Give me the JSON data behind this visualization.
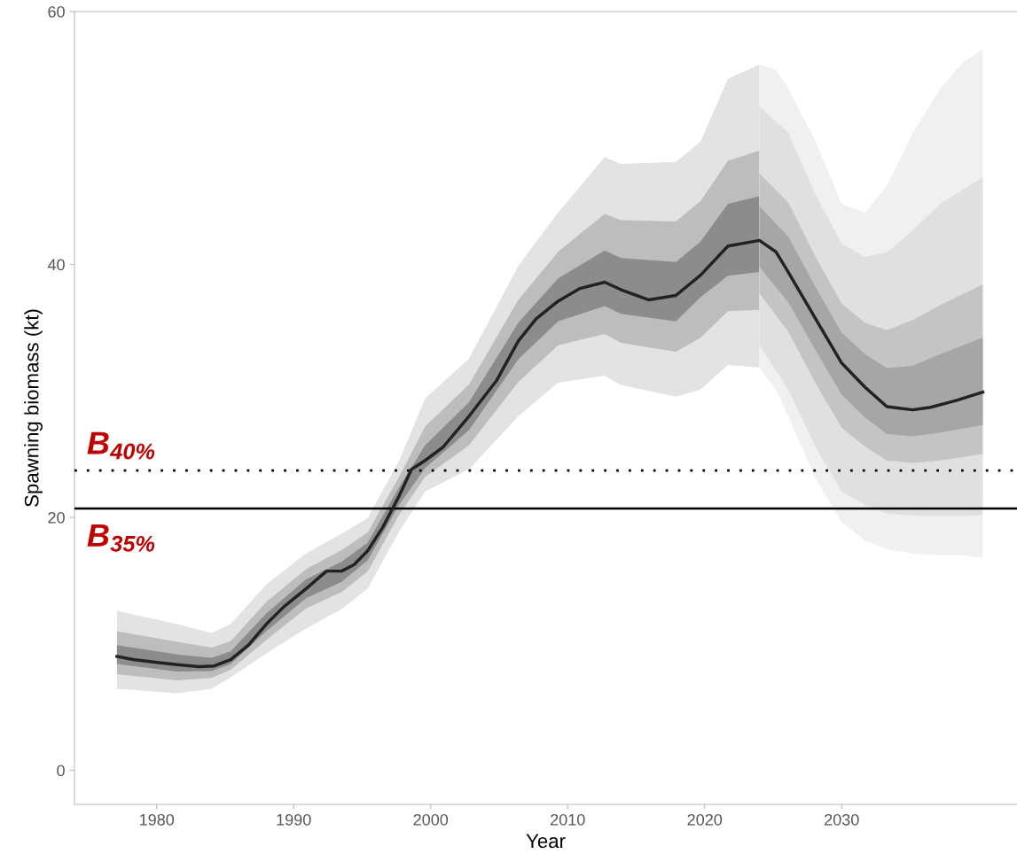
{
  "chart_data": {
    "type": "line",
    "xlabel": "Year",
    "ylabel": "Spawning biomass (kt)",
    "xlim": [
      1974.0,
      2042.8
    ],
    "ylim": [
      -2.7,
      60
    ],
    "xticks": [
      1980,
      1990,
      2000,
      2010,
      2020,
      2030
    ],
    "yticks": [
      0,
      20,
      40,
      60
    ],
    "grid": false,
    "legend": false,
    "series": [
      {
        "color": "#e3e3e3",
        "x": [
          1977.1,
          1981.5,
          1984.0,
          1985.4,
          1988.0,
          1990.9,
          1993.5,
          1995.4,
          1997.7,
          1999.6,
          2002.8,
          2006.4,
          2009.3,
          2012.7,
          2013.9,
          2017.9,
          2019.7,
          2021.7,
          2024.0
        ],
        "values": [
          null,
          null,
          null,
          null,
          null,
          null,
          null,
          null,
          null,
          null,
          null,
          null,
          null,
          null,
          null,
          null,
          null,
          null,
          null
        ],
        "upper": [
          12.6,
          11.55,
          10.85,
          11.55,
          14.7,
          17.15,
          18.7,
          19.95,
          24.5,
          29.4,
          32.55,
          39.9,
          44.1,
          48.5,
          47.95,
          48.1,
          49.7,
          54.7,
          55.8
        ],
        "lower": [
          6.45,
          6.1,
          6.45,
          7.35,
          9.25,
          11.2,
          12.75,
          14.35,
          18.9,
          22.05,
          23.8,
          28.0,
          30.65,
          31.2,
          30.45,
          29.55,
          30.1,
          32.05,
          31.85
        ]
      },
      {
        "color": "#bdbdbd",
        "x": [
          1977.1,
          1981.5,
          1984.0,
          1985.4,
          1988.0,
          1990.9,
          1993.5,
          1995.4,
          1997.7,
          1999.6,
          2002.8,
          2006.4,
          2009.3,
          2012.7,
          2013.9,
          2017.9,
          2019.7,
          2021.7,
          2024.0
        ],
        "values": [
          null,
          null,
          null,
          null,
          null,
          null,
          null,
          null,
          null,
          null,
          null,
          null,
          null,
          null,
          null,
          null,
          null,
          null,
          null
        ],
        "upper": [
          11.0,
          10.15,
          9.7,
          10.2,
          13.3,
          15.9,
          17.4,
          18.8,
          23.2,
          27.2,
          30.5,
          37.2,
          41.0,
          44.0,
          43.5,
          43.4,
          45.0,
          48.2,
          49.0
        ],
        "lower": [
          7.6,
          7.1,
          7.3,
          7.95,
          10.3,
          12.8,
          14.1,
          15.7,
          20.2,
          23.2,
          25.7,
          30.7,
          33.6,
          34.5,
          33.8,
          33.1,
          34.2,
          36.3,
          36.4
        ]
      },
      {
        "color": "#8c8c8c",
        "x": [
          1977.1,
          1981.5,
          1984.0,
          1985.4,
          1988.0,
          1990.9,
          1993.5,
          1995.4,
          1997.7,
          1999.6,
          2002.8,
          2006.4,
          2009.3,
          2012.7,
          2013.9,
          2017.9,
          2019.7,
          2021.7,
          2024.0
        ],
        "values": [
          null,
          null,
          null,
          null,
          null,
          null,
          null,
          null,
          null,
          null,
          null,
          null,
          null,
          null,
          null,
          null,
          null,
          null,
          null
        ],
        "upper": [
          9.9,
          9.15,
          8.9,
          9.4,
          12.4,
          15.1,
          16.5,
          18.0,
          22.4,
          25.7,
          29.1,
          35.4,
          38.9,
          41.1,
          40.5,
          40.2,
          41.8,
          44.8,
          45.4
        ],
        "lower": [
          8.4,
          7.8,
          7.85,
          8.4,
          11.0,
          13.6,
          14.9,
          16.6,
          21.0,
          23.9,
          26.9,
          32.5,
          35.5,
          36.7,
          36.1,
          35.5,
          37.4,
          39.1,
          39.4
        ]
      },
      {
        "color": "#f0f0f0",
        "x": [
          2024.0,
          2025.2,
          2026.1,
          2028.1,
          2030.0,
          2031.7,
          2033.3,
          2035.2,
          2037.2,
          2038.8,
          2040.3
        ],
        "values": [
          null,
          null,
          null,
          null,
          null,
          null,
          null,
          null,
          null,
          null,
          null
        ],
        "upper": [
          55.8,
          55.4,
          53.9,
          49.7,
          44.8,
          44.1,
          46.2,
          50.4,
          53.9,
          55.9,
          57.05
        ],
        "lower": [
          31.85,
          30.1,
          28.0,
          23.1,
          19.6,
          18.2,
          17.5,
          17.15,
          17.0,
          17.0,
          16.8
        ]
      },
      {
        "color": "#e0e0e0",
        "x": [
          2024.0,
          2026.1,
          2028.1,
          2030.0,
          2031.7,
          2033.3,
          2035.2,
          2037.2,
          2040.3
        ],
        "values": [
          null,
          null,
          null,
          null,
          null,
          null,
          null,
          null,
          null
        ],
        "upper": [
          52.5,
          50.4,
          45.5,
          41.65,
          40.6,
          40.95,
          42.7,
          44.8,
          46.9
        ],
        "lower": [
          33.6,
          30.1,
          25.55,
          22.05,
          21.0,
          20.3,
          20.15,
          20.1,
          20.15
        ]
      },
      {
        "color": "#c4c4c4",
        "x": [
          2024.0,
          2026.1,
          2028.1,
          2030.0,
          2031.7,
          2033.3,
          2035.2,
          2037.2,
          2040.3
        ],
        "values": [
          null,
          null,
          null,
          null,
          null,
          null,
          null,
          null,
          null
        ],
        "upper": [
          47.2,
          44.9,
          40.6,
          36.9,
          35.4,
          34.8,
          35.6,
          36.8,
          38.4
        ],
        "lower": [
          37.7,
          34.7,
          30.6,
          27.1,
          25.6,
          24.5,
          24.3,
          24.5,
          25.0
        ]
      },
      {
        "color": "#a6a6a6",
        "x": [
          2024.0,
          2026.1,
          2028.1,
          2030.0,
          2031.7,
          2033.3,
          2035.2,
          2037.2,
          2040.3
        ],
        "values": [
          null,
          null,
          null,
          null,
          null,
          null,
          null,
          null,
          null
        ],
        "upper": [
          44.6,
          42.2,
          38.2,
          34.6,
          32.9,
          31.8,
          32.0,
          32.9,
          34.2
        ],
        "lower": [
          39.8,
          37.0,
          33.2,
          29.7,
          27.9,
          26.6,
          26.4,
          26.7,
          27.3
        ]
      },
      {
        "color": "#222222",
        "x": [
          1977.1,
          1978.3,
          1979.9,
          1981.5,
          1983.1,
          1984.2,
          1985.4,
          1986.7,
          1988.0,
          1989.3,
          1990.9,
          1992.4,
          1993.5,
          1994.4,
          1995.4,
          1996.5,
          1997.7,
          1998.6,
          1999.6,
          2000.9,
          2002.8,
          2004.8,
          2006.4,
          2007.7,
          2009.3,
          2010.9,
          2012.7,
          2013.9,
          2015.9,
          2017.9,
          2019.7,
          2021.7,
          2024.0,
          2025.2,
          2026.1,
          2028.1,
          2030.0,
          2031.7,
          2033.3,
          2035.2,
          2036.5,
          2038.4,
          2040.3
        ],
        "values": [
          9.0,
          8.75,
          8.55,
          8.35,
          8.2,
          8.25,
          8.75,
          9.9,
          11.55,
          12.95,
          14.35,
          15.75,
          15.75,
          16.25,
          17.35,
          19.2,
          21.7,
          23.8,
          24.5,
          25.55,
          28.0,
          30.8,
          33.95,
          35.7,
          37.1,
          38.1,
          38.6,
          38.0,
          37.2,
          37.55,
          39.15,
          41.45,
          41.9,
          41.0,
          39.4,
          35.7,
          32.2,
          30.3,
          28.75,
          28.5,
          28.7,
          29.25,
          29.9
        ]
      }
    ],
    "ref_lines": [
      {
        "axis": "y",
        "value": 23.7,
        "label": "B$_{40%}$",
        "line_style": "dotted",
        "color": "#000000"
      },
      {
        "axis": "y",
        "value": 20.7,
        "label": "B$_{35%}$",
        "line_style": "solid",
        "color": "#000000"
      }
    ]
  }
}
